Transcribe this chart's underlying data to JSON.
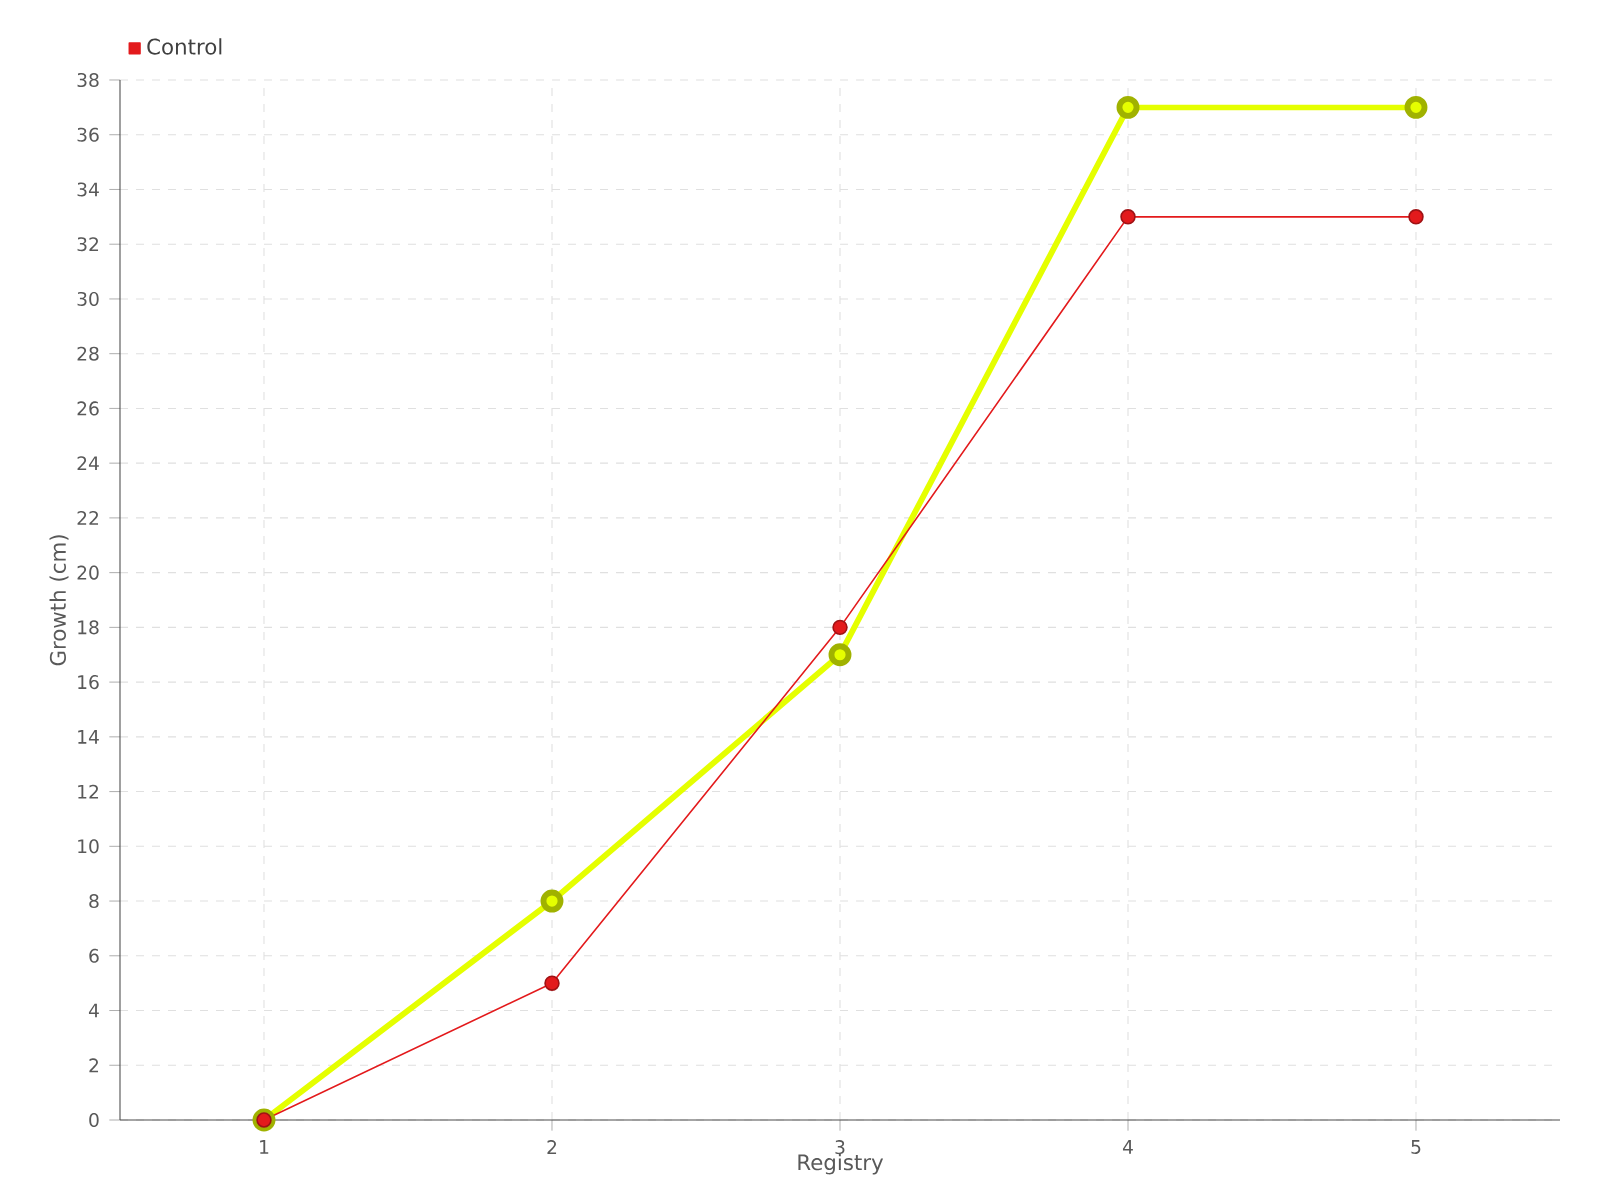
{
  "chart_data": {
    "type": "line",
    "xlabel": "Registry",
    "ylabel": "Growth (cm)",
    "categories": [
      "1",
      "2",
      "3",
      "4",
      "5"
    ],
    "series": [
      {
        "color": "#e5ff00",
        "values": [
          0,
          8,
          17,
          37,
          37
        ]
      },
      {
        "name": "Control",
        "color": "#e31a1c",
        "values": [
          0,
          5,
          18,
          33,
          33
        ]
      }
    ],
    "ylim": [
      0,
      38
    ],
    "yticks": [
      0,
      2,
      4,
      6,
      8,
      10,
      12,
      14,
      16,
      18,
      20,
      22,
      24,
      26,
      28,
      30,
      32,
      34,
      36,
      38
    ],
    "grid": true,
    "legend": "top left",
    "marker": "circle",
    "line_style": "solid"
  }
}
